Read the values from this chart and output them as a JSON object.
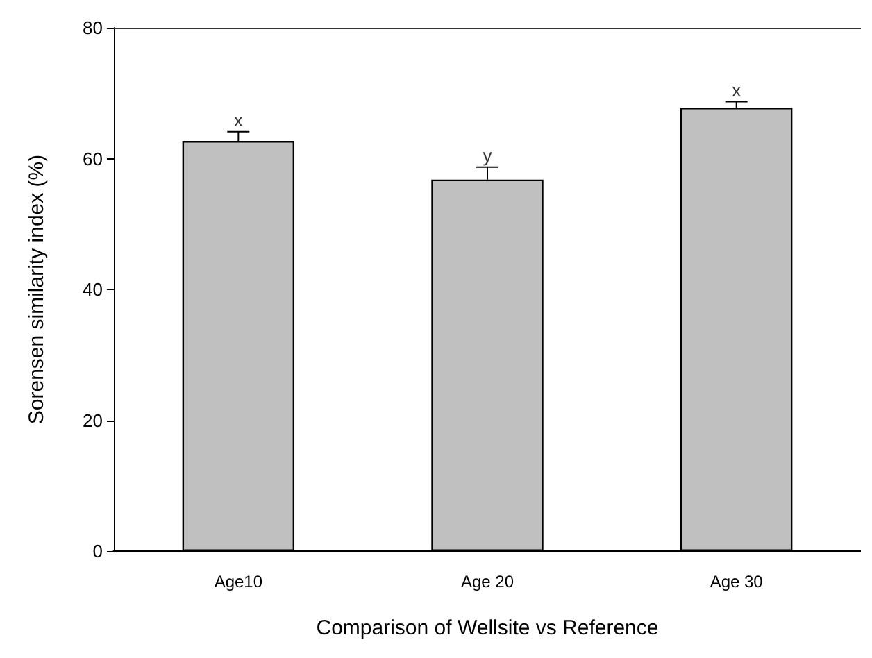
{
  "chart_data": {
    "type": "bar",
    "xlabel": "Comparison of Wellsite vs Reference",
    "ylabel": "Sorensen similarity index (%)",
    "categories": [
      "Age10",
      "Age 20",
      "Age 30"
    ],
    "values": [
      62.7,
      56.8,
      67.8
    ],
    "color": "#c0c0c0",
    "errors": [
      [
        62.7,
        64.1
      ],
      [
        56.8,
        58.7
      ],
      [
        67.8,
        68.7
      ]
    ],
    "ylim": [
      0,
      80
    ],
    "yticks": [
      0,
      20,
      40,
      60,
      80
    ],
    "annotations": [
      {
        "text": "x",
        "x": "Age10",
        "y": 64.1
      },
      {
        "text": "y",
        "x": "Age 20",
        "y": 58.7
      },
      {
        "text": "x",
        "x": "Age 30",
        "y": 68.7
      }
    ]
  }
}
